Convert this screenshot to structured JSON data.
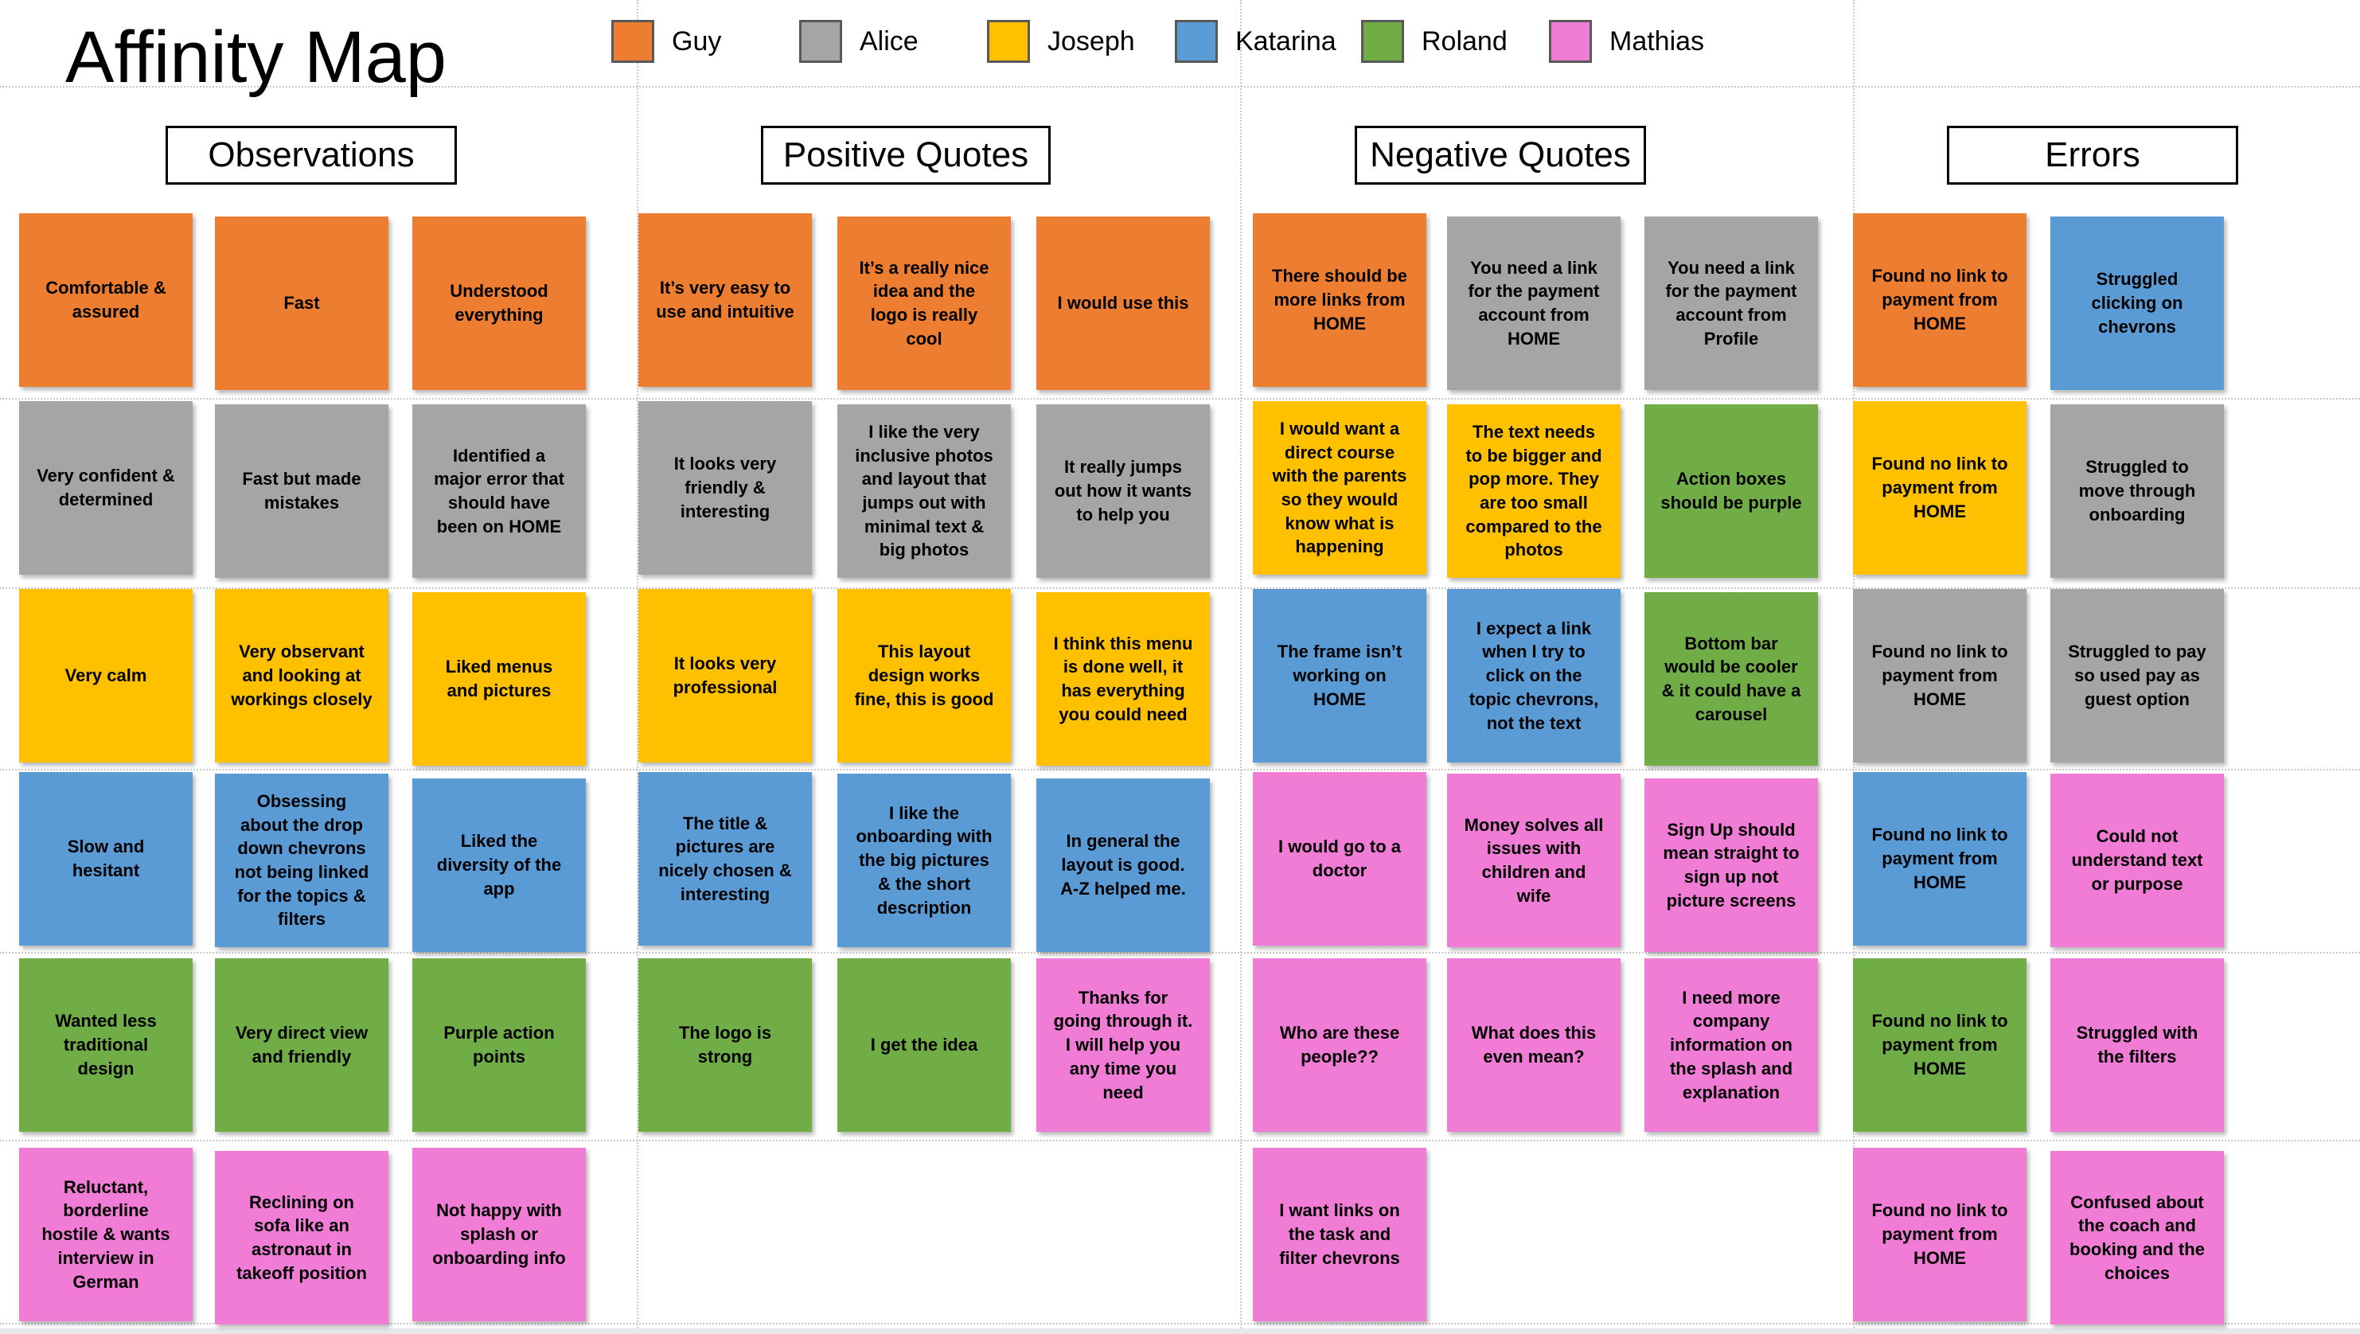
{
  "title": "Affinity Map",
  "legend": [
    {
      "name": "Guy",
      "color": "#ED7D31"
    },
    {
      "name": "Alice",
      "color": "#A5A5A5"
    },
    {
      "name": "Joseph",
      "color": "#FFC000"
    },
    {
      "name": "Katarina",
      "color": "#5B9BD5"
    },
    {
      "name": "Roland",
      "color": "#70AD47"
    },
    {
      "name": "Mathias",
      "color": "#F07CD6"
    }
  ],
  "sections": [
    {
      "title": "Observations",
      "columns": [
        [
          {
            "text": "Comfortable & assured",
            "person": "Guy"
          },
          {
            "text": "Very confident & determined",
            "person": "Alice"
          },
          {
            "text": "Very calm",
            "person": "Joseph"
          },
          {
            "text": "Slow and hesitant",
            "person": "Katarina"
          },
          {
            "text": "Wanted less traditional design",
            "person": "Roland"
          },
          {
            "text": "Reluctant, borderline hostile & wants interview in German",
            "person": "Mathias"
          }
        ],
        [
          {
            "text": "Fast",
            "person": "Guy"
          },
          {
            "text": "Fast but made mistakes",
            "person": "Alice"
          },
          {
            "text": "Very observant and looking at workings closely",
            "person": "Joseph"
          },
          {
            "text": "Obsessing about the drop down chevrons not being linked for the topics & filters",
            "person": "Katarina"
          },
          {
            "text": "Very direct view and friendly",
            "person": "Roland"
          },
          {
            "text": "Reclining on sofa like an astronaut in takeoff position",
            "person": "Mathias"
          }
        ],
        [
          {
            "text": "Understood everything",
            "person": "Guy"
          },
          {
            "text": "Identified a major error that should have been on HOME",
            "person": "Alice"
          },
          {
            "text": "Liked menus and pictures",
            "person": "Joseph"
          },
          {
            "text": "Liked  the diversity of the app",
            "person": "Katarina"
          },
          {
            "text": "Purple action points",
            "person": "Roland"
          },
          {
            "text": "Not happy with splash or onboarding info",
            "person": "Mathias"
          }
        ]
      ]
    },
    {
      "title": "Positive Quotes",
      "columns": [
        [
          {
            "text": "It’s very easy to use and intuitive",
            "person": "Guy"
          },
          {
            "text": "It looks very friendly & interesting",
            "person": "Alice"
          },
          {
            "text": "It looks very professional",
            "person": "Joseph"
          },
          {
            "text": "The title & pictures are nicely chosen & interesting",
            "person": "Katarina"
          },
          {
            "text": "The logo is strong",
            "person": "Roland"
          }
        ],
        [
          {
            "text": "It’s a really nice idea and the logo is really cool",
            "person": "Guy"
          },
          {
            "text": "I like the very inclusive photos and layout that jumps out with minimal text & big photos",
            "person": "Alice"
          },
          {
            "text": "This layout design works fine, this is good",
            "person": "Joseph"
          },
          {
            "text": "I like the onboarding with the big pictures & the short description",
            "person": "Katarina"
          },
          {
            "text": "I get the idea",
            "person": "Roland"
          }
        ],
        [
          {
            "text": "I would use this",
            "person": "Guy"
          },
          {
            "text": "It really jumps out how it wants to help you",
            "person": "Alice"
          },
          {
            "text": "I think this menu is done well, it has everything you could need",
            "person": "Joseph"
          },
          {
            "text": "In general the layout is good. A-Z helped me.",
            "person": "Katarina"
          },
          {
            "text": "Thanks for going through it. I will help you any time you need",
            "person": "Mathias"
          }
        ]
      ]
    },
    {
      "title": "Negative Quotes",
      "columns": [
        [
          {
            "text": "There should be more links from HOME",
            "person": "Guy"
          },
          {
            "text": "I would want a direct course with the parents so they would know what is happening",
            "person": "Joseph"
          },
          {
            "text": "The frame isn’t working on HOME",
            "person": "Katarina"
          },
          {
            "text": "I would go to a doctor",
            "person": "Mathias"
          },
          {
            "text": "Who are these people??",
            "person": "Mathias"
          },
          {
            "text": "I want links on the task and filter chevrons",
            "person": "Mathias"
          }
        ],
        [
          {
            "text": "You need a link for the payment account from HOME",
            "person": "Alice"
          },
          {
            "text": "The text needs to be bigger and pop more. They are too small compared to the photos",
            "person": "Joseph"
          },
          {
            "text": "I expect a link when I try to click on the topic chevrons, not the text",
            "person": "Katarina"
          },
          {
            "text": "Money solves all issues with children and wife",
            "person": "Mathias"
          },
          {
            "text": "What does this even mean?",
            "person": "Mathias"
          }
        ],
        [
          {
            "text": "You need a link for the payment account from Profile",
            "person": "Alice"
          },
          {
            "text": "Action boxes should be purple",
            "person": "Roland"
          },
          {
            "text": "Bottom bar would be cooler & it could have a carousel",
            "person": "Roland"
          },
          {
            "text": "Sign Up should mean straight to sign up not picture screens",
            "person": "Mathias"
          },
          {
            "text": "I need more company information on the splash and explanation",
            "person": "Mathias"
          }
        ]
      ]
    },
    {
      "title": "Errors",
      "columns": [
        [
          {
            "text": "Found no link to payment from HOME",
            "person": "Guy"
          },
          {
            "text": "Found no link to payment from HOME",
            "person": "Joseph"
          },
          {
            "text": "Found no link to payment from HOME",
            "person": "Alice"
          },
          {
            "text": "Found no link to payment from HOME",
            "person": "Katarina"
          },
          {
            "text": "Found no link to payment from HOME",
            "person": "Roland"
          },
          {
            "text": "Found no link to payment from HOME",
            "person": "Mathias"
          }
        ],
        [
          {
            "text": "Struggled clicking on chevrons",
            "person": "Katarina"
          },
          {
            "text": "Struggled to move through onboarding",
            "person": "Alice"
          },
          {
            "text": "Struggled to pay so used pay as guest option",
            "person": "Alice"
          },
          {
            "text": "Could not understand text or purpose",
            "person": "Mathias"
          },
          {
            "text": "Struggled with the filters",
            "person": "Mathias"
          },
          {
            "text": "Confused about the coach and booking and the choices",
            "person": "Mathias"
          }
        ]
      ]
    }
  ]
}
